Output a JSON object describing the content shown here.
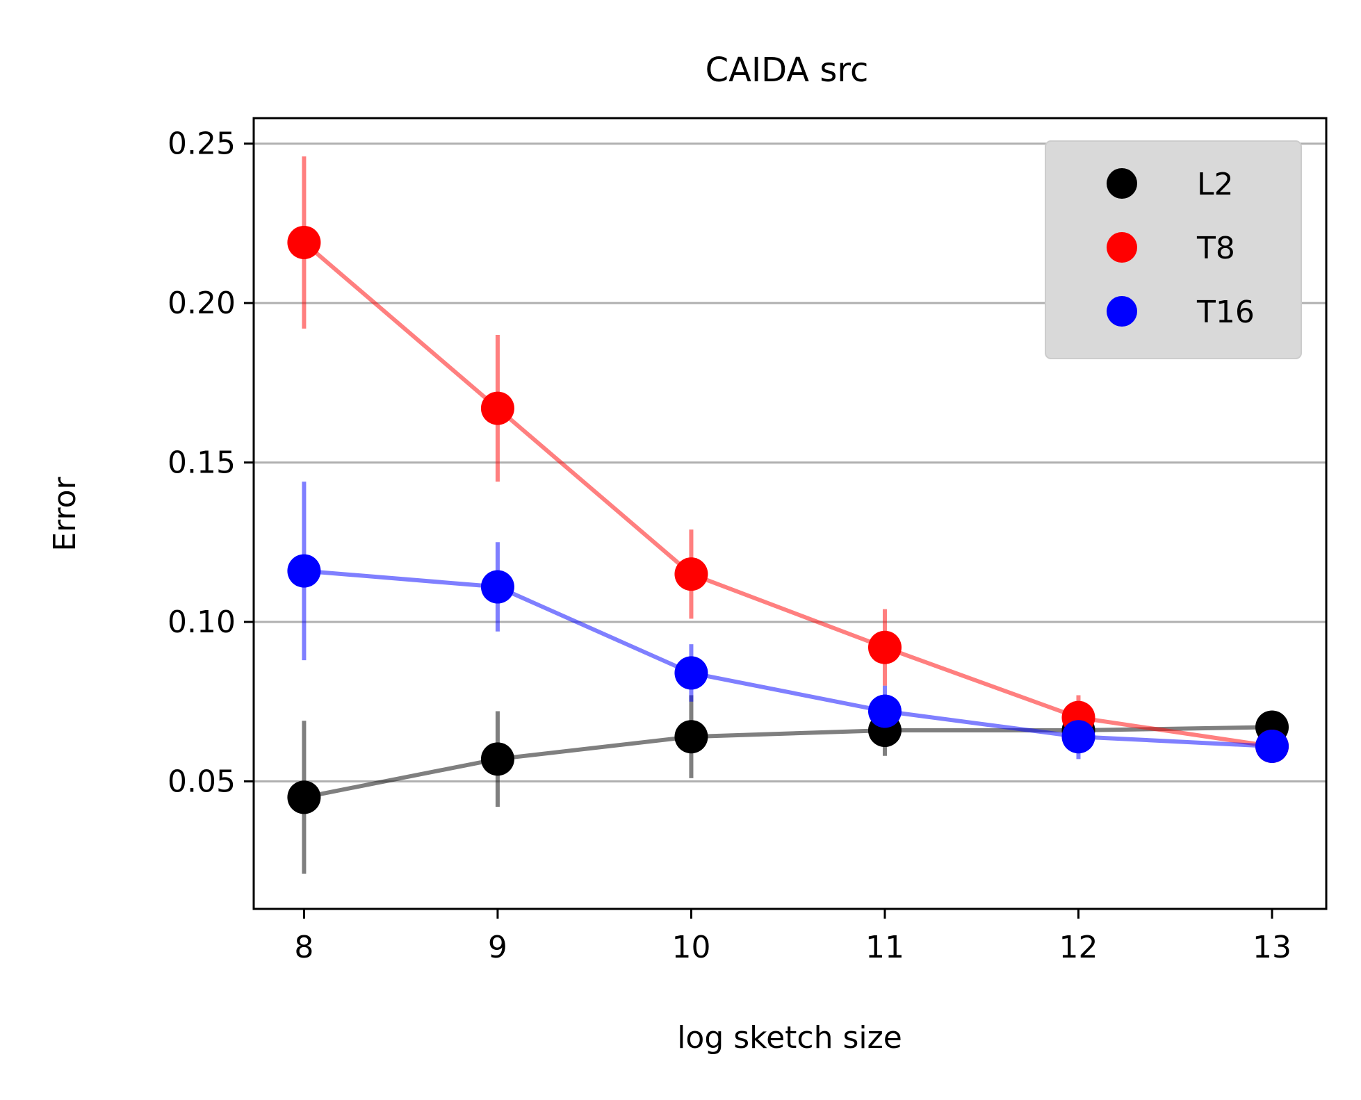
{
  "chart_data": {
    "type": "line",
    "title": "CAIDA src",
    "xlabel": "log sketch size",
    "ylabel": "Error",
    "x": [
      8,
      9,
      10,
      11,
      12,
      13
    ],
    "xlim": [
      7.74,
      13.28
    ],
    "ylim": [
      0.01,
      0.258
    ],
    "xticks": [
      8,
      9,
      10,
      11,
      12,
      13
    ],
    "xtick_labels": [
      "8",
      "9",
      "10",
      "11",
      "12",
      "13"
    ],
    "yticks": [
      0.05,
      0.1,
      0.15,
      0.2,
      0.25
    ],
    "ytick_labels": [
      "0.05",
      "0.10",
      "0.15",
      "0.20",
      "0.25"
    ],
    "grid": "horizontal",
    "legend_position": "top-right",
    "series": [
      {
        "name": "L2",
        "color": "#000000",
        "values": [
          0.045,
          0.057,
          0.064,
          0.066,
          0.066,
          0.067
        ],
        "err_low": [
          0.021,
          0.042,
          0.051,
          0.058,
          0.06,
          0.061
        ],
        "err_high": [
          0.069,
          0.072,
          0.077,
          0.073,
          0.071,
          0.07
        ]
      },
      {
        "name": "T8",
        "color": "#ff0000",
        "values": [
          0.219,
          0.167,
          0.115,
          0.092,
          0.07,
          0.061
        ],
        "err_low": [
          0.192,
          0.144,
          0.101,
          0.08,
          0.063,
          0.057
        ],
        "err_high": [
          0.246,
          0.19,
          0.129,
          0.104,
          0.077,
          0.065
        ]
      },
      {
        "name": "T16",
        "color": "#0000ff",
        "values": [
          0.116,
          0.111,
          0.084,
          0.072,
          0.064,
          0.061
        ],
        "err_low": [
          0.088,
          0.097,
          0.075,
          0.064,
          0.057,
          0.057
        ],
        "err_high": [
          0.144,
          0.125,
          0.093,
          0.08,
          0.071,
          0.065
        ]
      }
    ]
  }
}
